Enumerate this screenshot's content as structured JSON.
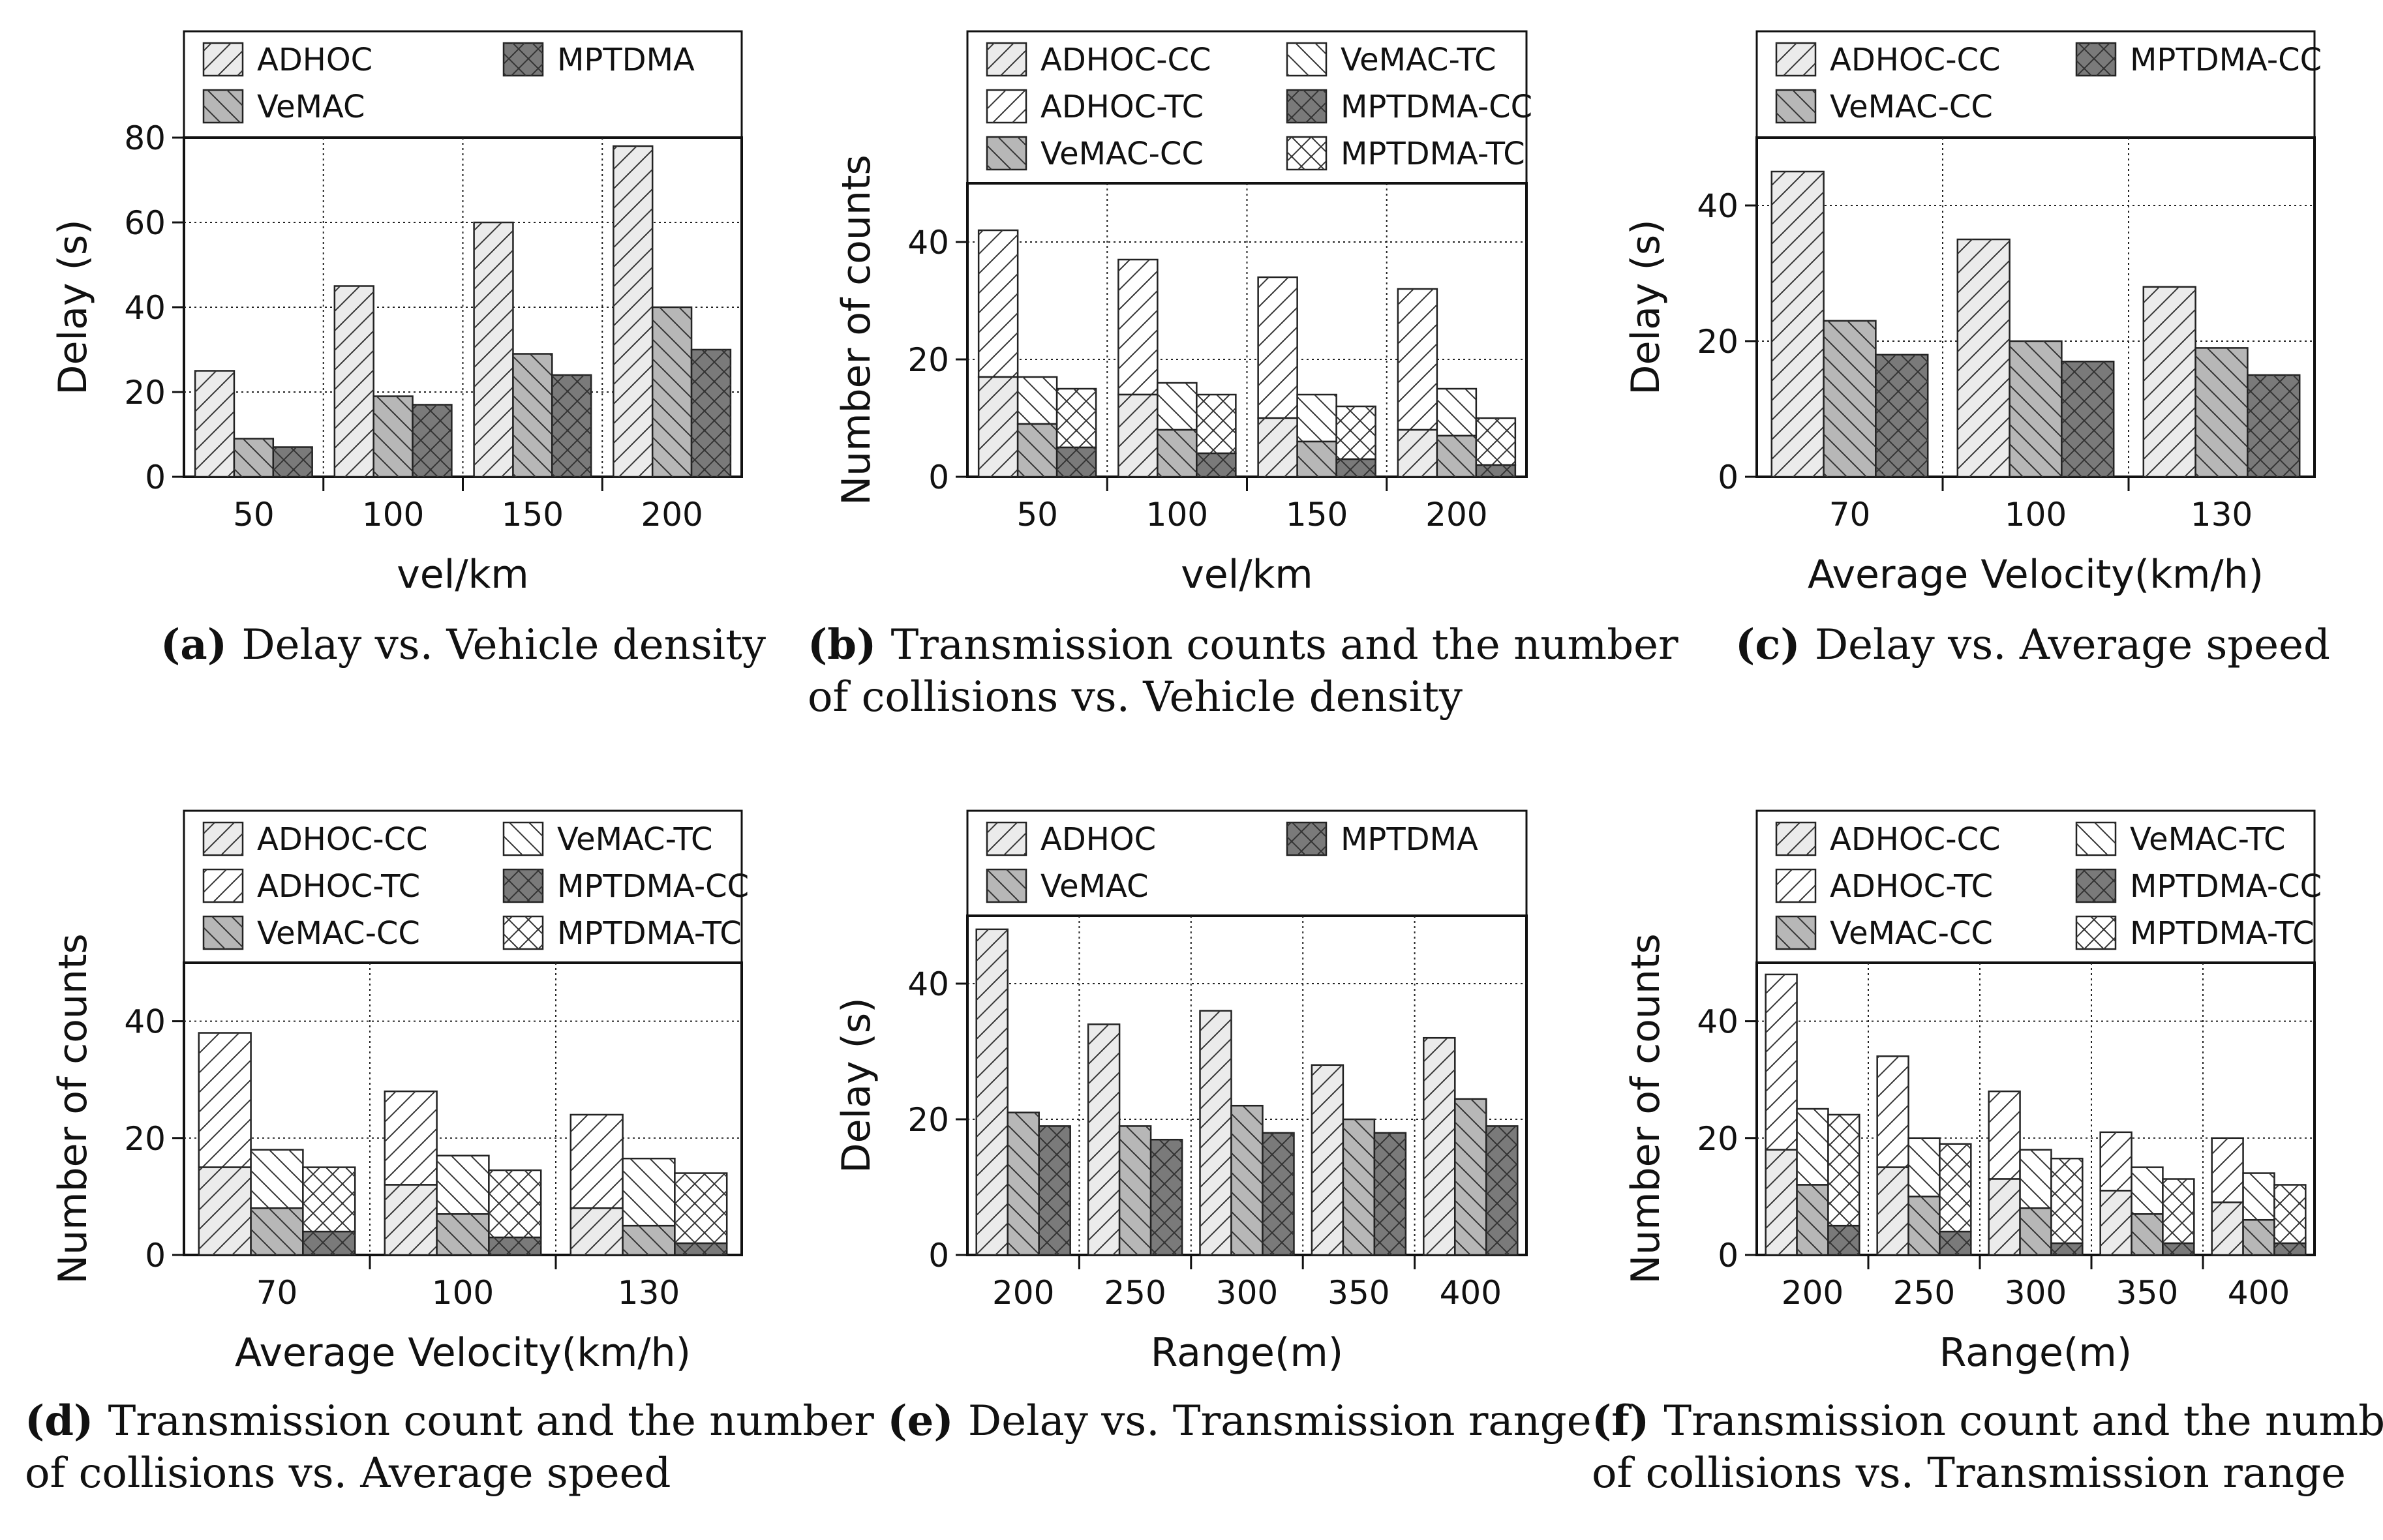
{
  "colors": {
    "ADHOC": "#ebebeb",
    "VeMAC": "#b7b7b7",
    "MPTDMA": "#7a7a7a",
    "TC": "#ffffff",
    "axis": "#111111",
    "grid": "#222222"
  },
  "chart_data": [
    {
      "id": "a",
      "type": "bar",
      "title_letter": "(a)",
      "title": "Delay vs. Vehicle density",
      "xlabel": "vel/km",
      "ylabel": "Delay (s)",
      "ylim": [
        0,
        80
      ],
      "yticks": [
        0,
        20,
        40,
        60,
        80
      ],
      "categories": [
        "50",
        "100",
        "150",
        "200"
      ],
      "series": [
        {
          "name": "ADHOC",
          "values": [
            25,
            45,
            60,
            78
          ]
        },
        {
          "name": "VeMAC",
          "values": [
            9,
            19,
            29,
            40
          ]
        },
        {
          "name": "MPTDMA",
          "values": [
            7,
            17,
            24,
            30
          ]
        }
      ]
    },
    {
      "id": "b",
      "type": "stacked-bar",
      "title_letter": "(b)",
      "title": [
        "Transmission counts and the number",
        "of collisions vs. Vehicle density"
      ],
      "xlabel": "vel/km",
      "ylabel": "Number of counts",
      "ylim": [
        0,
        50
      ],
      "yticks": [
        0,
        20,
        40
      ],
      "categories": [
        "50",
        "100",
        "150",
        "200"
      ],
      "legend": [
        "ADHOC-CC",
        "ADHOC-TC",
        "VeMAC-CC",
        "VeMAC-TC",
        "MPTDMA-CC",
        "MPTDMA-TC"
      ],
      "series": [
        {
          "name": "ADHOC",
          "cc": [
            17,
            14,
            10,
            8
          ],
          "tc": [
            42,
            37,
            34,
            32
          ]
        },
        {
          "name": "VeMAC",
          "cc": [
            9,
            8,
            6,
            7
          ],
          "tc": [
            17,
            16,
            14,
            15
          ]
        },
        {
          "name": "MPTDMA",
          "cc": [
            5,
            4,
            3,
            2
          ],
          "tc": [
            15,
            14,
            12,
            10
          ]
        }
      ]
    },
    {
      "id": "c",
      "type": "bar",
      "title_letter": "(c)",
      "title": "Delay vs. Average speed",
      "xlabel": "Average Velocity(km/h)",
      "ylabel": "Delay (s)",
      "ylim": [
        0,
        50
      ],
      "yticks": [
        0,
        20,
        40
      ],
      "categories": [
        "70",
        "100",
        "130"
      ],
      "series": [
        {
          "name": "ADHOC-CC",
          "values": [
            45,
            35,
            28
          ]
        },
        {
          "name": "VeMAC-CC",
          "values": [
            23,
            20,
            19
          ]
        },
        {
          "name": "MPTDMA-CC",
          "values": [
            18,
            17,
            15
          ]
        }
      ]
    },
    {
      "id": "d",
      "type": "stacked-bar",
      "title_letter": "(d)",
      "title": [
        "Transmission count and the number",
        "of collisions vs. Average speed"
      ],
      "xlabel": "Average Velocity(km/h)",
      "ylabel": "Number of counts",
      "ylim": [
        0,
        50
      ],
      "yticks": [
        0,
        20,
        40
      ],
      "categories": [
        "70",
        "100",
        "130"
      ],
      "legend": [
        "ADHOC-CC",
        "ADHOC-TC",
        "VeMAC-CC",
        "VeMAC-TC",
        "MPTDMA-CC",
        "MPTDMA-TC"
      ],
      "series": [
        {
          "name": "ADHOC",
          "cc": [
            15,
            12,
            8
          ],
          "tc": [
            38,
            28,
            24
          ]
        },
        {
          "name": "VeMAC",
          "cc": [
            8,
            7,
            5
          ],
          "tc": [
            18,
            17,
            16.5
          ]
        },
        {
          "name": "MPTDMA",
          "cc": [
            4,
            3,
            2
          ],
          "tc": [
            15,
            14.5,
            14
          ]
        }
      ]
    },
    {
      "id": "e",
      "type": "bar",
      "title_letter": "(e)",
      "title": "Delay vs. Transmission range",
      "xlabel": "Range(m)",
      "ylabel": "Delay (s)",
      "ylim": [
        0,
        50
      ],
      "yticks": [
        0,
        20,
        40
      ],
      "categories": [
        "200",
        "250",
        "300",
        "350",
        "400"
      ],
      "series": [
        {
          "name": "ADHOC",
          "values": [
            48,
            34,
            36,
            28,
            32
          ]
        },
        {
          "name": "VeMAC",
          "values": [
            21,
            19,
            22,
            20,
            23
          ]
        },
        {
          "name": "MPTDMA",
          "values": [
            19,
            17,
            18,
            18,
            19
          ]
        }
      ]
    },
    {
      "id": "f",
      "type": "stacked-bar",
      "title_letter": "(f)",
      "title": [
        "Transmission count and the number",
        "of collisions vs. Transmission range"
      ],
      "xlabel": "Range(m)",
      "ylabel": "Number of counts",
      "ylim": [
        0,
        50
      ],
      "yticks": [
        0,
        20,
        40
      ],
      "categories": [
        "200",
        "250",
        "300",
        "350",
        "400"
      ],
      "legend": [
        "ADHOC-CC",
        "ADHOC-TC",
        "VeMAC-CC",
        "VeMAC-TC",
        "MPTDMA-CC",
        "MPTDMA-TC"
      ],
      "series": [
        {
          "name": "ADHOC",
          "cc": [
            18,
            15,
            13,
            11,
            9
          ],
          "tc": [
            48,
            34,
            28,
            21,
            20
          ]
        },
        {
          "name": "VeMAC",
          "cc": [
            12,
            10,
            8,
            7,
            6
          ],
          "tc": [
            25,
            20,
            18,
            15,
            14
          ]
        },
        {
          "name": "MPTDMA",
          "cc": [
            5,
            4,
            2,
            2,
            2
          ],
          "tc": [
            24,
            19,
            16.5,
            13,
            12
          ]
        }
      ]
    }
  ]
}
